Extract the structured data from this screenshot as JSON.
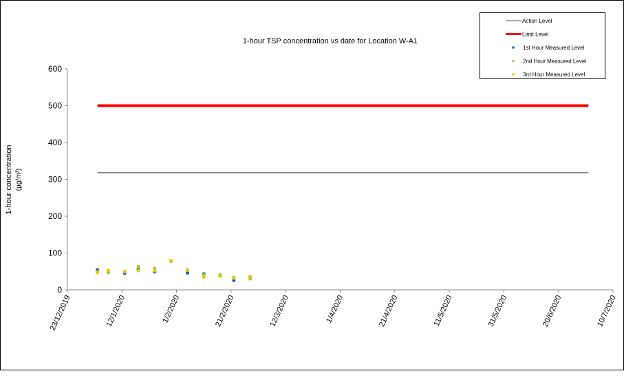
{
  "chart_data": {
    "type": "scatter",
    "title": "1-hour TSP concentration vs date for Location W-A1",
    "ylabel": "1-hour concentration",
    "ylabel_unit": "(µg/m³)",
    "xlabel": "",
    "ylim": [
      0,
      600
    ],
    "yticks": [
      0,
      100,
      200,
      300,
      400,
      500,
      600
    ],
    "xlim": [
      "23/12/2019",
      "10/7/2020"
    ],
    "xticks": [
      "23/12/2019",
      "12/1/2020",
      "1/2/2020",
      "21/2/2020",
      "12/3/2020",
      "1/4/2020",
      "21/4/2020",
      "11/5/2020",
      "31/5/2020",
      "20/6/2020",
      "10/7/2020"
    ],
    "grid": false,
    "legend_position": "top-right",
    "lines": [
      {
        "name": "Action Level",
        "value": 318,
        "from": "3/1/2020",
        "to": "1/7/2020",
        "color": "#595959"
      },
      {
        "name": "Limit Level",
        "value": 500,
        "from": "3/1/2020",
        "to": "1/7/2020",
        "color": "#ff0000"
      }
    ],
    "dates": [
      "3/1/2020",
      "7/1/2020",
      "13/1/2020",
      "18/1/2020",
      "24/1/2020",
      "30/1/2020",
      "5/2/2020",
      "11/2/2020",
      "17/2/2020",
      "22/2/2020",
      "28/2/2020"
    ],
    "series": [
      {
        "name": "1st Hour Measured Level",
        "color": "#0070c0",
        "values": [
          54,
          52,
          45,
          55,
          49,
          78,
          46,
          43,
          38,
          26,
          35
        ]
      },
      {
        "name": "2nd Hour Measured Level",
        "color": "#92d050",
        "values": [
          49,
          47,
          49,
          63,
          58,
          79,
          54,
          40,
          41,
          32,
          30
        ]
      },
      {
        "name": "3rd Hour Measured Level",
        "color": "#ffc000",
        "values": [
          47,
          53,
          50,
          52,
          52,
          79,
          54,
          35,
          37,
          34,
          36
        ]
      }
    ]
  }
}
